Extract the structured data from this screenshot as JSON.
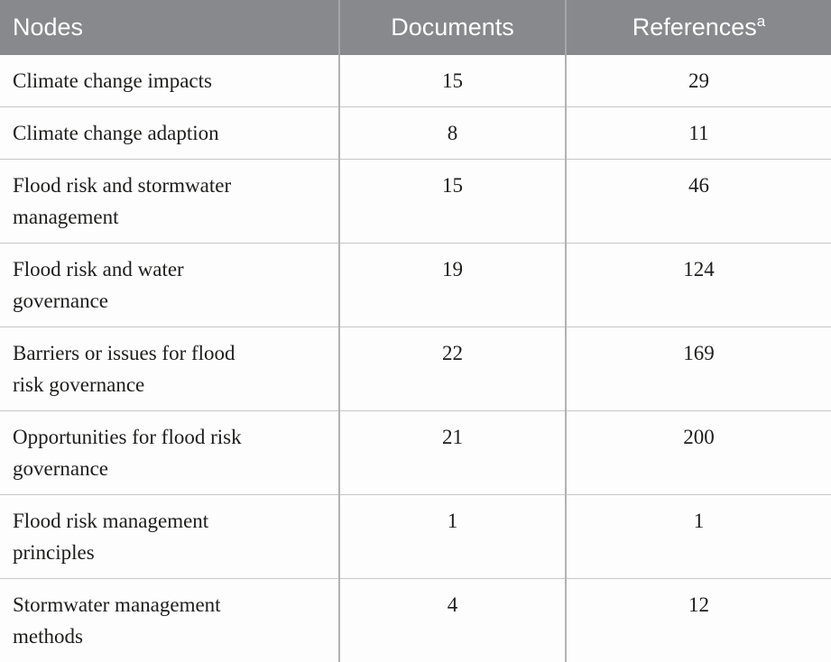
{
  "table": {
    "columns": [
      {
        "key": "node",
        "label": "Nodes"
      },
      {
        "key": "documents",
        "label": "Documents"
      },
      {
        "key": "references",
        "label": "References",
        "superscript": "a"
      }
    ],
    "rows": [
      {
        "node": "Climate change impacts",
        "documents": "15",
        "references": "29"
      },
      {
        "node": "Climate change adaption",
        "documents": "8",
        "references": "11"
      },
      {
        "node": "Flood risk and stormwater\nmanagement",
        "documents": "15",
        "references": "46"
      },
      {
        "node": "Flood risk and water\ngovernance",
        "documents": "19",
        "references": "124"
      },
      {
        "node": "Barriers or issues for flood\nrisk governance",
        "documents": "22",
        "references": "169"
      },
      {
        "node": "Opportunities for flood risk\ngovernance",
        "documents": "21",
        "references": "200"
      },
      {
        "node": "Flood risk management\nprinciples",
        "documents": "1",
        "references": "1"
      },
      {
        "node": "Stormwater management\nmethods",
        "documents": "4",
        "references": "12"
      }
    ],
    "colors": {
      "header_background": "#87898c",
      "header_text": "#ffffff",
      "header_divider": "#a4a6a9",
      "body_divider": "#b1b2b4",
      "row_border": "#c5c6c8",
      "body_text": "#1d1d1c",
      "body_background": "#fdfdfd"
    }
  }
}
